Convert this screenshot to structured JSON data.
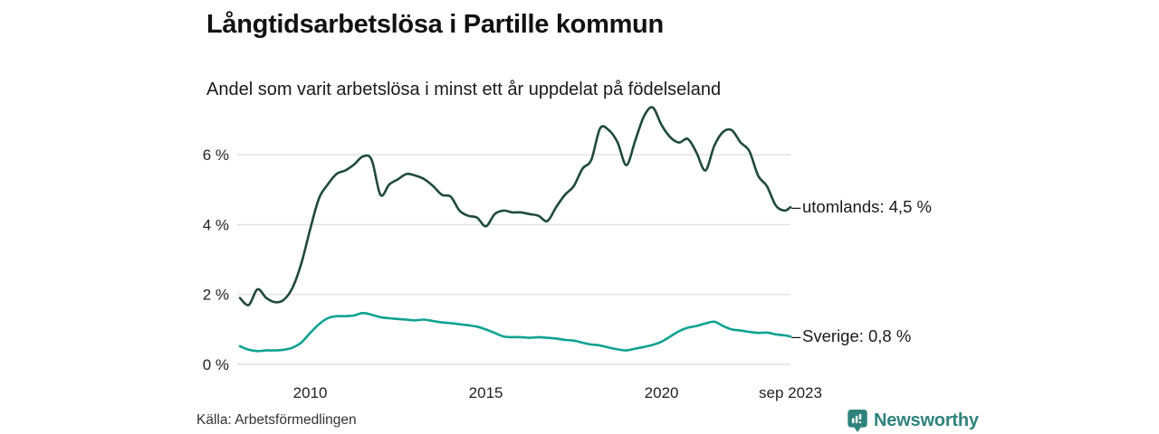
{
  "header": {
    "title": "Långtidsarbetslösa i Partille kommun",
    "subtitle": "Andel som varit arbetslösa i minst ett år uppdelat på födelseland"
  },
  "footer": {
    "source": "Källa: Arbetsförmedlingen",
    "brand_name": "Newsworthy"
  },
  "colors": {
    "grid": "#e1e1e1",
    "tick_text": "#222222",
    "utomlands_line": "#1e4a3c",
    "sverige_line": "#0fa292",
    "brand_teal": "#2e837c",
    "end_label_text": "#1a1a1a",
    "dash": "#555555"
  },
  "chart_data": {
    "type": "line",
    "title": "Långtidsarbetslösa i Partille kommun",
    "subtitle": "Andel som varit arbetslösa i minst ett år uppdelat på födelseland",
    "xlabel": "",
    "ylabel": "",
    "x_unit": "decimal_year (monthly share, % long-term unemployed)",
    "xlim": [
      2008.0,
      2023.67
    ],
    "ylim": [
      0,
      7.6
    ],
    "grid": "horizontal-only",
    "legend_position": "line-end-right",
    "end_label_dash": "–",
    "y_ticks": [
      {
        "label": "0 %",
        "value": 0
      },
      {
        "label": "2 %",
        "value": 2
      },
      {
        "label": "4 %",
        "value": 4
      },
      {
        "label": "6 %",
        "value": 6
      }
    ],
    "x_ticks": [
      {
        "label": "2010",
        "value": 2010
      },
      {
        "label": "2015",
        "value": 2015
      },
      {
        "label": "2020",
        "value": 2020
      },
      {
        "label": "sep 2023",
        "value": 2023.67
      }
    ],
    "x": [
      2008.0,
      2008.25,
      2008.5,
      2008.75,
      2009.0,
      2009.25,
      2009.5,
      2009.75,
      2010.0,
      2010.25,
      2010.5,
      2010.75,
      2011.0,
      2011.25,
      2011.5,
      2011.75,
      2012.0,
      2012.25,
      2012.5,
      2012.75,
      2013.0,
      2013.25,
      2013.5,
      2013.75,
      2014.0,
      2014.25,
      2014.5,
      2014.75,
      2015.0,
      2015.25,
      2015.5,
      2015.75,
      2016.0,
      2016.25,
      2016.5,
      2016.75,
      2017.0,
      2017.25,
      2017.5,
      2017.75,
      2018.0,
      2018.25,
      2018.5,
      2018.75,
      2019.0,
      2019.25,
      2019.5,
      2019.75,
      2020.0,
      2020.25,
      2020.5,
      2020.75,
      2021.0,
      2021.25,
      2021.5,
      2021.75,
      2022.0,
      2022.25,
      2022.5,
      2022.75,
      2023.0,
      2023.25,
      2023.5,
      2023.67
    ],
    "series": [
      {
        "name": "utomlands",
        "end_label": "utomlands: 4,5 %",
        "end_value_text": "4,5 %",
        "color": "#1e4a3c",
        "values": [
          1.9,
          1.7,
          2.15,
          1.9,
          1.78,
          1.85,
          2.2,
          2.9,
          3.87,
          4.75,
          5.15,
          5.45,
          5.55,
          5.72,
          5.95,
          5.85,
          4.85,
          5.15,
          5.3,
          5.45,
          5.4,
          5.3,
          5.1,
          4.85,
          4.8,
          4.4,
          4.25,
          4.2,
          3.95,
          4.3,
          4.4,
          4.35,
          4.35,
          4.3,
          4.25,
          4.1,
          4.5,
          4.85,
          5.1,
          5.6,
          5.85,
          6.75,
          6.7,
          6.35,
          5.7,
          6.4,
          7.1,
          7.35,
          6.85,
          6.5,
          6.35,
          6.45,
          6.05,
          5.55,
          6.25,
          6.65,
          6.7,
          6.35,
          6.1,
          5.4,
          5.1,
          4.55,
          4.4,
          4.5
        ]
      },
      {
        "name": "Sverige",
        "end_label": "Sverige: 0,8 %",
        "end_value_text": "0,8 %",
        "color": "#0fa292",
        "values": [
          0.52,
          0.42,
          0.38,
          0.4,
          0.4,
          0.42,
          0.48,
          0.63,
          0.9,
          1.15,
          1.32,
          1.38,
          1.38,
          1.4,
          1.47,
          1.42,
          1.35,
          1.32,
          1.3,
          1.28,
          1.26,
          1.28,
          1.24,
          1.2,
          1.18,
          1.15,
          1.12,
          1.08,
          1.0,
          0.9,
          0.8,
          0.78,
          0.78,
          0.76,
          0.78,
          0.76,
          0.74,
          0.7,
          0.68,
          0.62,
          0.57,
          0.54,
          0.48,
          0.43,
          0.4,
          0.45,
          0.5,
          0.56,
          0.65,
          0.8,
          0.95,
          1.05,
          1.1,
          1.17,
          1.22,
          1.1,
          1.0,
          0.97,
          0.93,
          0.9,
          0.91,
          0.86,
          0.83,
          0.8
        ]
      }
    ]
  }
}
